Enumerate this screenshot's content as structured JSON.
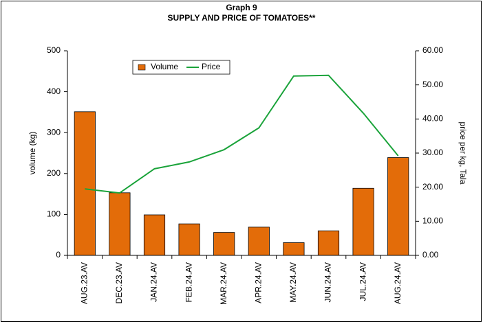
{
  "chart_data": {
    "type": "bar-line",
    "title": "Graph 9",
    "subtitle": "SUPPLY AND PRICE OF TOMATOES**",
    "y_label": "volume (kg)",
    "y2_label": "price per kg, Tala",
    "categories": [
      "AUG.23.AV",
      "DEC.23.AV",
      "JAN.24.AV",
      "FEB.24.AV",
      "MAR.24.AV",
      "APR.24.AV",
      "MAY.24.AV",
      "JUN.24.AV",
      "JUL.24.AV",
      "AUG.24.AV"
    ],
    "series": [
      {
        "name": "Volume",
        "type": "bar",
        "color": "#e36c09",
        "values": [
          351,
          153,
          99,
          77,
          56,
          69,
          31,
          60,
          164,
          239
        ]
      },
      {
        "name": "Price",
        "type": "line",
        "axis": "y2",
        "color": "#1aa33a",
        "values": [
          19.5,
          18.3,
          25.4,
          27.4,
          31.0,
          37.4,
          52.6,
          52.8,
          41.7,
          29.2
        ]
      }
    ],
    "ylim": [
      0,
      500
    ],
    "yticks": [
      0,
      100,
      200,
      300,
      400,
      500
    ],
    "y2lim": [
      0,
      60
    ],
    "y2ticks": [
      {
        "value": 0,
        "label": "0.00"
      },
      {
        "value": 10,
        "label": "10.00"
      },
      {
        "value": 20,
        "label": "20.00"
      },
      {
        "value": 30,
        "label": "30.00"
      },
      {
        "value": 40,
        "label": "40.00"
      },
      {
        "value": 50,
        "label": "50.00"
      },
      {
        "value": 60,
        "label": "60.00"
      }
    ],
    "grid": false,
    "legend": "top-left"
  }
}
